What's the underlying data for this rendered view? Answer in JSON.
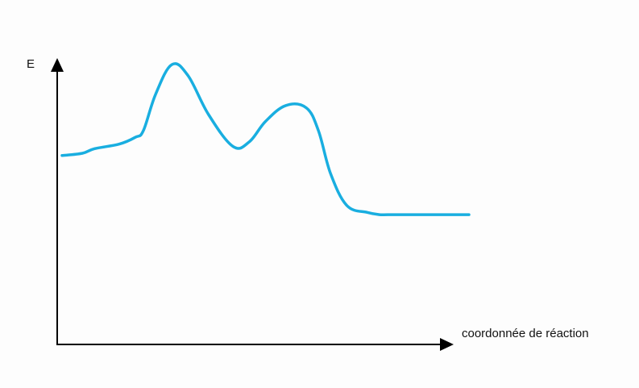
{
  "chart_data": {
    "type": "line",
    "title": "",
    "ylabel": "E",
    "xlabel": "coordonnée de réaction",
    "grid": false,
    "legend": "none",
    "xlim": [
      0,
      1
    ],
    "ylim": [
      0,
      1
    ],
    "series": [
      {
        "color": "#19aee0",
        "x": [
          0.0,
          0.05,
          0.08,
          0.14,
          0.18,
          0.2,
          0.23,
          0.27,
          0.31,
          0.36,
          0.42,
          0.46,
          0.5,
          0.55,
          0.6,
          0.63,
          0.66,
          0.7,
          0.75,
          0.78,
          0.8,
          0.84,
          0.9,
          0.95,
          1.0
        ],
        "y": [
          0.6,
          0.61,
          0.63,
          0.65,
          0.68,
          0.71,
          0.87,
          1.0,
          0.95,
          0.78,
          0.64,
          0.66,
          0.75,
          0.82,
          0.81,
          0.71,
          0.52,
          0.38,
          0.35,
          0.34,
          0.34,
          0.34,
          0.34,
          0.34,
          0.34
        ]
      }
    ]
  },
  "colors": {
    "curve": "#19aee0",
    "axis": "#000000"
  }
}
